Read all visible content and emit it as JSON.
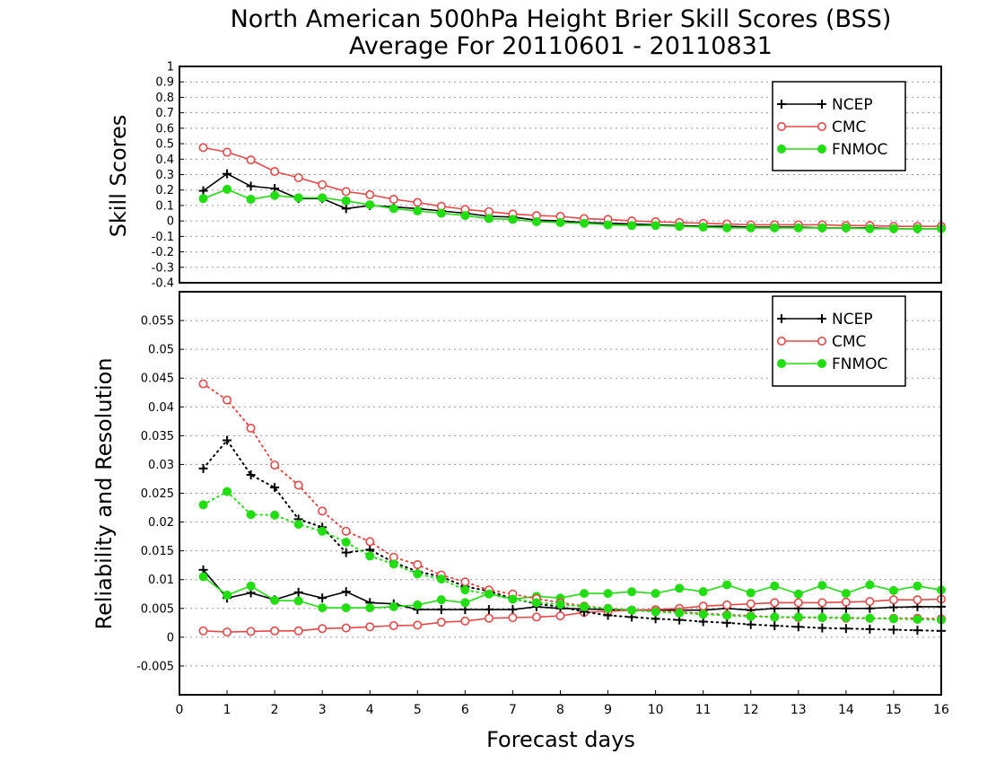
{
  "title_line1": "North American 500hPa Height Brier Skill Scores (BSS)",
  "title_line2": "Average For 20110601 - 20110831",
  "colors": {
    "NCEP": "#000000",
    "CMC": "#e84848",
    "FNMOC": "#22dd11"
  },
  "legend_top": [
    "NCEP",
    "CMC",
    "FNMOC"
  ],
  "legend_bottom": [
    "NCEP",
    "CMC",
    "FNMOC"
  ],
  "chart_data": [
    {
      "type": "line",
      "ylabel": "Skill Scores",
      "xlim": [
        0,
        16
      ],
      "ylim": [
        -0.4,
        1
      ],
      "yticks": [
        "1",
        "0.9",
        "0.8",
        "0.7",
        "0.6",
        "0.5",
        "0.4",
        "0.3",
        "0.2",
        "0.1",
        "0",
        "-0.1",
        "-0.2",
        "-0.3",
        "-0.4"
      ],
      "x": [
        0.5,
        1,
        1.5,
        2,
        2.5,
        3,
        3.5,
        4,
        4.5,
        5,
        5.5,
        6,
        6.5,
        7,
        7.5,
        8,
        8.5,
        9,
        9.5,
        10,
        10.5,
        11,
        11.5,
        12,
        12.5,
        13,
        13.5,
        14,
        14.5,
        15,
        15.5,
        16
      ],
      "series": [
        {
          "name": "NCEP",
          "marker": "plus",
          "values": [
            0.195,
            0.305,
            0.225,
            0.21,
            0.145,
            0.145,
            0.08,
            0.1,
            0.09,
            0.08,
            0.065,
            0.05,
            0.03,
            0.025,
            0.005,
            0.0,
            -0.01,
            -0.015,
            -0.02,
            -0.025,
            -0.03,
            -0.035,
            -0.035,
            -0.04,
            -0.04,
            -0.04,
            -0.045,
            -0.045,
            -0.045,
            -0.05,
            -0.05,
            -0.05
          ]
        },
        {
          "name": "CMC",
          "marker": "circle",
          "values": [
            0.475,
            0.445,
            0.395,
            0.32,
            0.28,
            0.235,
            0.19,
            0.17,
            0.14,
            0.12,
            0.095,
            0.075,
            0.06,
            0.045,
            0.035,
            0.03,
            0.015,
            0.01,
            0.0,
            -0.005,
            -0.01,
            -0.015,
            -0.02,
            -0.025,
            -0.025,
            -0.025,
            -0.025,
            -0.03,
            -0.03,
            -0.035,
            -0.035,
            -0.035
          ]
        },
        {
          "name": "FNMOC",
          "marker": "dot",
          "values": [
            0.145,
            0.205,
            0.14,
            0.165,
            0.15,
            0.15,
            0.13,
            0.105,
            0.08,
            0.065,
            0.05,
            0.035,
            0.015,
            0.01,
            -0.005,
            -0.01,
            -0.015,
            -0.025,
            -0.03,
            -0.03,
            -0.035,
            -0.04,
            -0.045,
            -0.045,
            -0.045,
            -0.045,
            -0.045,
            -0.045,
            -0.05,
            -0.05,
            -0.05,
            -0.05
          ]
        }
      ]
    },
    {
      "type": "line",
      "xlabel": "Forecast days",
      "ylabel": "Reliability and Resolution",
      "xlim": [
        0,
        16
      ],
      "ylim": [
        -0.01,
        0.06
      ],
      "xticks": [
        "0",
        "1",
        "2",
        "3",
        "4",
        "5",
        "6",
        "7",
        "8",
        "9",
        "10",
        "11",
        "12",
        "13",
        "14",
        "15",
        "16"
      ],
      "yticks": [
        "0.055",
        "0.05",
        "0.045",
        "0.04",
        "0.035",
        "0.03",
        "0.025",
        "0.02",
        "0.015",
        "0.01",
        "0.005",
        "0",
        "-0.005"
      ],
      "x": [
        0.5,
        1,
        1.5,
        2,
        2.5,
        3,
        3.5,
        4,
        4.5,
        5,
        5.5,
        6,
        6.5,
        7,
        7.5,
        8,
        8.5,
        9,
        9.5,
        10,
        10.5,
        11,
        11.5,
        12,
        12.5,
        13,
        13.5,
        14,
        14.5,
        15,
        15.5,
        16
      ],
      "series": [
        {
          "name": "NCEP",
          "line": "solid",
          "marker": "plus",
          "values": [
            0.0117,
            0.0068,
            0.0077,
            0.0065,
            0.0078,
            0.0068,
            0.0079,
            0.006,
            0.0058,
            0.0048,
            0.0048,
            0.0048,
            0.0048,
            0.0048,
            0.0053,
            0.005,
            0.0049,
            0.0048,
            0.0047,
            0.0047,
            0.0047,
            0.0047,
            0.005,
            0.0047,
            0.005,
            0.005,
            0.005,
            0.005,
            0.005,
            0.0052,
            0.0053,
            0.0053
          ]
        },
        {
          "name": "CMC",
          "line": "solid",
          "marker": "circle",
          "values": [
            0.0011,
            0.0009,
            0.001,
            0.0011,
            0.0011,
            0.0015,
            0.0016,
            0.0018,
            0.002,
            0.0021,
            0.0026,
            0.0028,
            0.0033,
            0.0034,
            0.0035,
            0.0037,
            0.0043,
            0.0045,
            0.0047,
            0.0048,
            0.005,
            0.0054,
            0.0056,
            0.0058,
            0.006,
            0.006,
            0.006,
            0.0061,
            0.0062,
            0.0065,
            0.0065,
            0.0066
          ]
        },
        {
          "name": "FNMOC",
          "line": "solid",
          "marker": "dot",
          "values": [
            0.0105,
            0.0073,
            0.0089,
            0.0064,
            0.0063,
            0.0051,
            0.0051,
            0.0051,
            0.0053,
            0.0056,
            0.0065,
            0.006,
            0.0076,
            0.0066,
            0.0071,
            0.0068,
            0.0076,
            0.0076,
            0.0079,
            0.0076,
            0.0085,
            0.0079,
            0.0091,
            0.0077,
            0.0089,
            0.0075,
            0.009,
            0.0076,
            0.0091,
            0.0081,
            0.0089,
            0.0082
          ]
        },
        {
          "name": "NCEP",
          "line": "dotted",
          "marker": "plus",
          "values": [
            0.0293,
            0.0342,
            0.0282,
            0.026,
            0.0205,
            0.0191,
            0.0147,
            0.0152,
            0.013,
            0.0114,
            0.0105,
            0.0088,
            0.008,
            0.0067,
            0.0058,
            0.0053,
            0.0044,
            0.0038,
            0.0035,
            0.0032,
            0.003,
            0.0027,
            0.0025,
            0.0022,
            0.002,
            0.0018,
            0.0016,
            0.0015,
            0.0014,
            0.0013,
            0.0012,
            0.0011
          ]
        },
        {
          "name": "CMC",
          "line": "dotted",
          "marker": "circle",
          "values": [
            0.044,
            0.0412,
            0.0363,
            0.0299,
            0.0264,
            0.0219,
            0.0184,
            0.0166,
            0.0139,
            0.0126,
            0.0108,
            0.0096,
            0.0082,
            0.0075,
            0.0067,
            0.006,
            0.0054,
            0.005,
            0.0047,
            0.0045,
            0.0044,
            0.0041,
            0.0039,
            0.0037,
            0.0035,
            0.0034,
            0.0034,
            0.0033,
            0.0033,
            0.0033,
            0.0033,
            0.0032
          ]
        },
        {
          "name": "FNMOC",
          "line": "dotted",
          "marker": "dot",
          "values": [
            0.023,
            0.0253,
            0.0213,
            0.0212,
            0.0196,
            0.0184,
            0.0165,
            0.0141,
            0.0127,
            0.011,
            0.0101,
            0.0082,
            0.0075,
            0.0066,
            0.006,
            0.0057,
            0.0053,
            0.005,
            0.0047,
            0.0044,
            0.0042,
            0.004,
            0.0038,
            0.0036,
            0.0035,
            0.0035,
            0.0034,
            0.0034,
            0.0033,
            0.0032,
            0.0031,
            0.003
          ]
        }
      ]
    }
  ]
}
